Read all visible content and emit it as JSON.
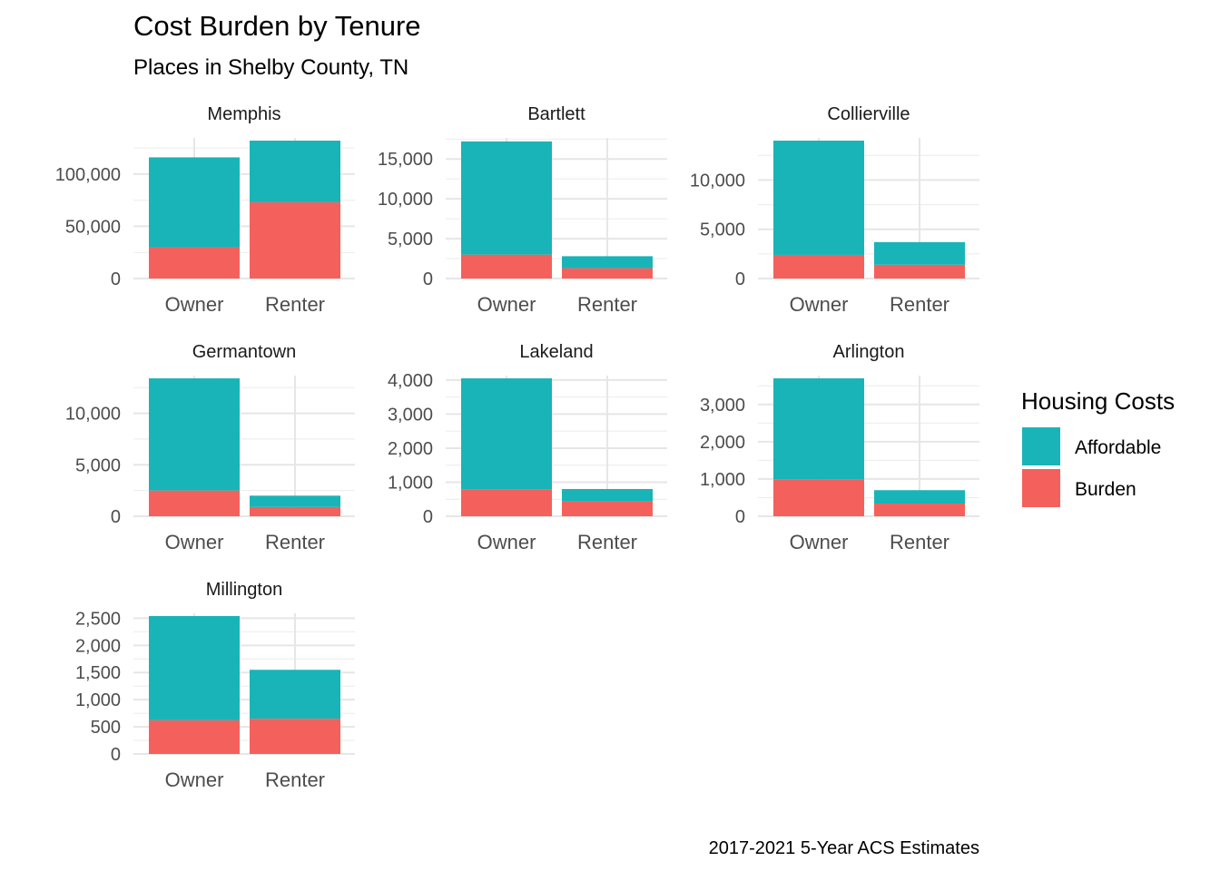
{
  "chart_data": {
    "type": "bar",
    "stacked": true,
    "title": "Cost Burden by Tenure",
    "subtitle": "Places in Shelby County, TN",
    "caption": "2017-2021 5-Year ACS Estimates",
    "categories": [
      "Owner",
      "Renter"
    ],
    "legend": {
      "title": "Housing Costs",
      "position": "right",
      "entries": [
        {
          "name": "Affordable",
          "color": "#19B4B7"
        },
        {
          "name": "Burden",
          "color": "#F4615C"
        }
      ]
    },
    "grid": true,
    "facets": [
      {
        "name": "Memphis",
        "ylim": [
          0,
          132000
        ],
        "yticks": [
          0,
          50000,
          100000
        ],
        "ytick_labels": [
          "0",
          "50,000",
          "100,000"
        ],
        "series": [
          {
            "name": "Burden",
            "values": [
              30000,
              73000
            ]
          },
          {
            "name": "Affordable",
            "values": [
              86000,
              59000
            ]
          }
        ]
      },
      {
        "name": "Bartlett",
        "ylim": [
          0,
          17300
        ],
        "yticks": [
          0,
          5000,
          10000,
          15000
        ],
        "ytick_labels": [
          "0",
          "5,000",
          "10,000",
          "15,000"
        ],
        "series": [
          {
            "name": "Burden",
            "values": [
              3000,
              1300
            ]
          },
          {
            "name": "Affordable",
            "values": [
              14200,
              1500
            ]
          }
        ]
      },
      {
        "name": "Collierville",
        "ylim": [
          0,
          14000
        ],
        "yticks": [
          0,
          5000,
          10000
        ],
        "ytick_labels": [
          "0",
          "5,000",
          "10,000"
        ],
        "series": [
          {
            "name": "Burden",
            "values": [
              2400,
              1400
            ]
          },
          {
            "name": "Affordable",
            "values": [
              11600,
              2300
            ]
          }
        ]
      },
      {
        "name": "Germantown",
        "ylim": [
          0,
          13400
        ],
        "yticks": [
          0,
          5000,
          10000
        ],
        "ytick_labels": [
          "0",
          "5,000",
          "10,000"
        ],
        "series": [
          {
            "name": "Burden",
            "values": [
              2500,
              900
            ]
          },
          {
            "name": "Affordable",
            "values": [
              10900,
              1100
            ]
          }
        ]
      },
      {
        "name": "Lakeland",
        "ylim": [
          0,
          4050
        ],
        "yticks": [
          0,
          1000,
          2000,
          3000,
          4000
        ],
        "ytick_labels": [
          "0",
          "1,000",
          "2,000",
          "3,000",
          "4,000"
        ],
        "series": [
          {
            "name": "Burden",
            "values": [
              780,
              430
            ]
          },
          {
            "name": "Affordable",
            "values": [
              3270,
              370
            ]
          }
        ]
      },
      {
        "name": "Arlington",
        "ylim": [
          0,
          3700
        ],
        "yticks": [
          0,
          1000,
          2000,
          3000
        ],
        "ytick_labels": [
          "0",
          "1,000",
          "2,000",
          "3,000"
        ],
        "series": [
          {
            "name": "Burden",
            "values": [
              980,
              340
            ]
          },
          {
            "name": "Affordable",
            "values": [
              2720,
              360
            ]
          }
        ]
      },
      {
        "name": "Millington",
        "ylim": [
          0,
          2540
        ],
        "yticks": [
          0,
          500,
          1000,
          1500,
          2000,
          2500
        ],
        "ytick_labels": [
          "0",
          "500",
          "1,000",
          "1,500",
          "2,000",
          "2,500"
        ],
        "series": [
          {
            "name": "Burden",
            "values": [
              620,
              650
            ]
          },
          {
            "name": "Affordable",
            "values": [
              1920,
              900
            ]
          }
        ]
      }
    ]
  }
}
